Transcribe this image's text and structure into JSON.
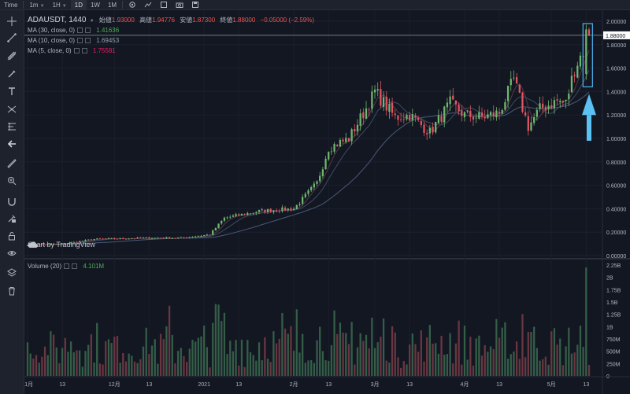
{
  "topbar": {
    "time_label": "Time",
    "intervals": [
      {
        "label": "1m",
        "caret": true
      },
      {
        "label": "1H",
        "caret": true
      },
      {
        "label": "1D",
        "caret": false,
        "active": true
      },
      {
        "label": "1W",
        "caret": false
      },
      {
        "label": "1M",
        "caret": false
      }
    ]
  },
  "toolbar": {
    "tools": [
      "crosshair-icon",
      "trend-line-icon",
      "pitchfork-icon",
      "brush-icon",
      "text-icon",
      "pattern-icon",
      "measure-icon",
      "back-arrow-icon",
      "ruler-icon",
      "zoom-icon",
      "magnet-icon",
      "lock-drawing-icon",
      "lock-icon",
      "eye-icon",
      "layers-icon",
      "trash-icon"
    ]
  },
  "legend": {
    "symbol": "ADAUSDT, 1440",
    "open_label": "始値",
    "open": "1.93000",
    "high_label": "高値",
    "high": "1.94776",
    "low_label": "安値",
    "low": "1.87300",
    "close_label": "終値",
    "close": "1.88000",
    "change": "−0.05000 (−2.59%)",
    "ma": [
      {
        "name": "MA (30, close, 0)",
        "value": "1.41636",
        "color": "#4caf50"
      },
      {
        "name": "MA (10, close, 0)",
        "value": "1.69453",
        "color": "#90a4ae"
      },
      {
        "name": "MA (5, close, 0)",
        "value": "1.75581",
        "color": "#e91e63"
      }
    ],
    "volume_name": "Volume (20)",
    "volume_value": "4.101M"
  },
  "watermark": "Chart by TradingView",
  "colors": {
    "background": "#131722",
    "up": "#6fb66f",
    "down": "#e05561",
    "highlight_box": "#4fb3f0",
    "arrow": "#5bc0f2",
    "price_tag": "#ffffff"
  },
  "chart_data": {
    "type": "candlestick",
    "symbol": "ADAUSDT",
    "interval": "1440",
    "current_price": "1.88000",
    "price_axis_ticks": [
      "2.00000",
      "1.80000",
      "1.60000",
      "1.40000",
      "1.20000",
      "1.00000",
      "0.80000",
      "0.60000",
      "0.40000",
      "0.20000",
      "0.00000"
    ],
    "volume_axis_ticks": [
      "2.25B",
      "2B",
      "1.75B",
      "1.5B",
      "1.25B",
      "1B",
      "750M",
      "500M",
      "250M",
      "0"
    ],
    "x_ticks": [
      "11月",
      "13",
      "12月",
      "13",
      "2021",
      "13",
      "2月",
      "13",
      "3月",
      "13",
      "4月",
      "13",
      "5月",
      "13"
    ],
    "price_anchor_points": [
      {
        "date": "2020-11-01",
        "close": 0.09
      },
      {
        "date": "2020-11-13",
        "close": 0.1
      },
      {
        "date": "2020-11-24",
        "close": 0.14
      },
      {
        "date": "2020-12-13",
        "close": 0.15
      },
      {
        "date": "2020-12-24",
        "close": 0.15
      },
      {
        "date": "2021-01-03",
        "close": 0.18
      },
      {
        "date": "2021-01-08",
        "close": 0.32
      },
      {
        "date": "2021-01-20",
        "close": 0.38
      },
      {
        "date": "2021-02-01",
        "close": 0.4
      },
      {
        "date": "2021-02-09",
        "close": 0.62
      },
      {
        "date": "2021-02-13",
        "close": 0.92
      },
      {
        "date": "2021-02-20",
        "close": 1.0
      },
      {
        "date": "2021-02-27",
        "close": 1.3
      },
      {
        "date": "2021-03-01",
        "close": 1.4
      },
      {
        "date": "2021-03-08",
        "close": 1.18
      },
      {
        "date": "2021-03-13",
        "close": 1.2
      },
      {
        "date": "2021-03-20",
        "close": 1.05
      },
      {
        "date": "2021-03-27",
        "close": 1.3
      },
      {
        "date": "2021-04-01",
        "close": 1.2
      },
      {
        "date": "2021-04-07",
        "close": 1.18
      },
      {
        "date": "2021-04-13",
        "close": 1.22
      },
      {
        "date": "2021-04-18",
        "close": 1.5
      },
      {
        "date": "2021-04-23",
        "close": 1.1
      },
      {
        "date": "2021-04-27",
        "close": 1.25
      },
      {
        "date": "2021-05-03",
        "close": 1.32
      },
      {
        "date": "2021-05-06",
        "close": 1.3
      },
      {
        "date": "2021-05-09",
        "close": 1.6
      },
      {
        "date": "2021-05-12",
        "close": 1.75
      },
      {
        "date": "2021-05-14",
        "close": 1.88
      }
    ]
  }
}
